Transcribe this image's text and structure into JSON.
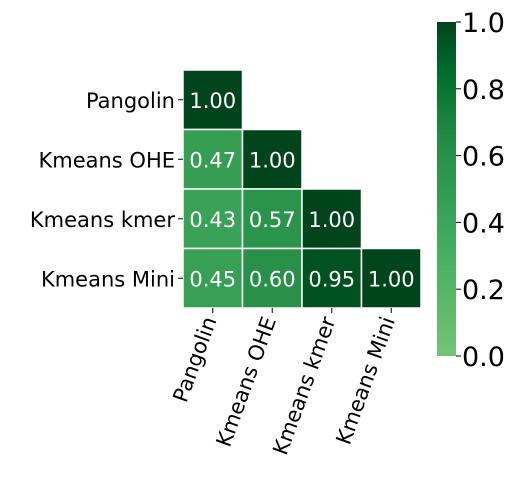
{
  "chart_data": {
    "type": "heatmap",
    "title": "",
    "rows": [
      "Pangolin",
      "Kmeans OHE",
      "Kmeans kmer",
      "Kmeans Mini"
    ],
    "columns": [
      "Pangolin",
      "Kmeans OHE",
      "Kmeans kmer",
      "Kmeans Mini"
    ],
    "mask": "upper-triangle",
    "values": [
      [
        1.0,
        null,
        null,
        null
      ],
      [
        0.47,
        1.0,
        null,
        null
      ],
      [
        0.43,
        0.57,
        1.0,
        null
      ],
      [
        0.45,
        0.6,
        0.95,
        1.0
      ]
    ],
    "value_labels": [
      [
        "1.00",
        null,
        null,
        null
      ],
      [
        "0.47",
        "1.00",
        null,
        null
      ],
      [
        "0.43",
        "0.57",
        "1.00",
        null
      ],
      [
        "0.45",
        "0.60",
        "0.95",
        "1.00"
      ]
    ],
    "colorbar": {
      "min": 0.0,
      "max": 1.0,
      "ticks": [
        "0.0",
        "0.2",
        "0.4",
        "0.6",
        "0.8",
        "1.0"
      ],
      "colormap": "Greens",
      "color_low": "#74c476",
      "color_high": "#00441b"
    },
    "cell_border_color": "#ffffff",
    "xtick_rotation_deg": -70
  }
}
